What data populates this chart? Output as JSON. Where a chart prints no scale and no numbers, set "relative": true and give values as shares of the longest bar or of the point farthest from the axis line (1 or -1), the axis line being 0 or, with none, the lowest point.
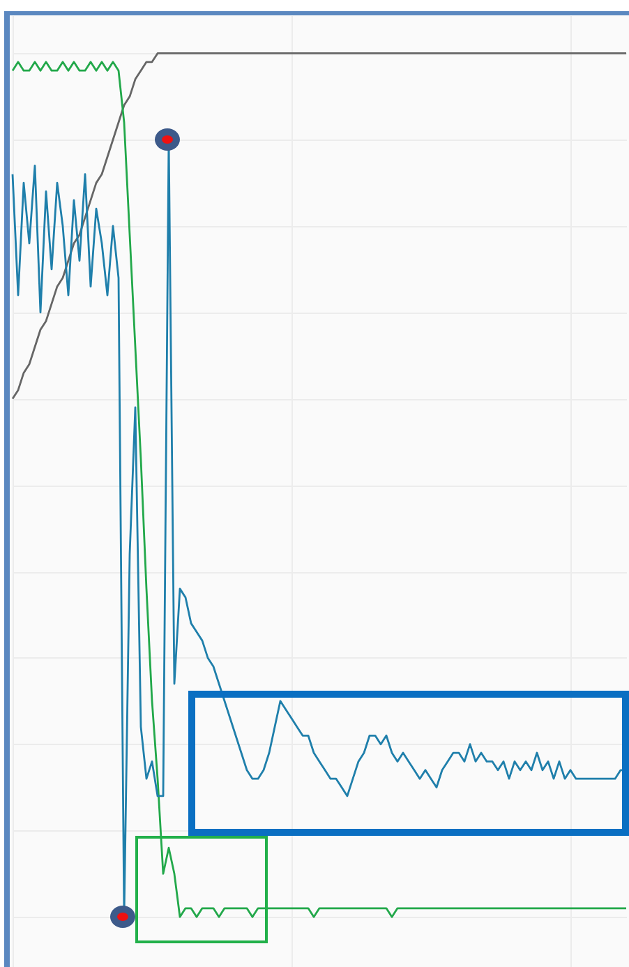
{
  "chart_data": {
    "type": "line",
    "relative": true,
    "grid": true,
    "categories": [
      null,
      null,
      null,
      null,
      null,
      null,
      null,
      null,
      null,
      null,
      null,
      null,
      null,
      null,
      null,
      null,
      null,
      null,
      null,
      null,
      null,
      null,
      null,
      null,
      null,
      null,
      null,
      null,
      null,
      null,
      null,
      null,
      null,
      null,
      null,
      null,
      null,
      null,
      null,
      null,
      null,
      null,
      null,
      null,
      null,
      null,
      null,
      null,
      null,
      null,
      null,
      null,
      null,
      null,
      null,
      null,
      null,
      null,
      null,
      null,
      null,
      null,
      null,
      null,
      null,
      null,
      null,
      null,
      null,
      null,
      null,
      null,
      null,
      null,
      null,
      null,
      null,
      null,
      null,
      null,
      null,
      null,
      null,
      null,
      null,
      null,
      null,
      null,
      null,
      null,
      null,
      null,
      null,
      null,
      null,
      null,
      null,
      null,
      null,
      null,
      null,
      null,
      null,
      null,
      null,
      null,
      null,
      null,
      null,
      null,
      null
    ],
    "series": [
      {
        "color": "#666666",
        "values": [
          0.6,
          0.61,
          0.63,
          0.64,
          0.66,
          0.68,
          0.69,
          0.71,
          0.73,
          0.74,
          0.76,
          0.78,
          0.79,
          0.81,
          0.83,
          0.85,
          0.86,
          0.88,
          0.9,
          0.92,
          0.94,
          0.95,
          0.97,
          0.98,
          0.99,
          0.99,
          1,
          1,
          1,
          1,
          1,
          1,
          1,
          1,
          1,
          1,
          1,
          1,
          1,
          1,
          1,
          1,
          1,
          1,
          1,
          1,
          1,
          1,
          1,
          1,
          1,
          1,
          1,
          1,
          1,
          1,
          1,
          1,
          1,
          1,
          1,
          1,
          1,
          1,
          1,
          1,
          1,
          1,
          1,
          1,
          1,
          1,
          1,
          1,
          1,
          1,
          1,
          1,
          1,
          1,
          1,
          1,
          1,
          1,
          1,
          1,
          1,
          1,
          1,
          1,
          1,
          1,
          1,
          1,
          1,
          1,
          1,
          1,
          1,
          1,
          1,
          1,
          1,
          1,
          1,
          1,
          1,
          1,
          1,
          1,
          1
        ]
      },
      {
        "color": "#22a84a",
        "values": [
          0.98,
          0.99,
          0.98,
          0.98,
          0.99,
          0.98,
          0.99,
          0.98,
          0.98,
          0.99,
          0.98,
          0.99,
          0.98,
          0.98,
          0.99,
          0.98,
          0.99,
          0.98,
          0.99,
          0.98,
          0.92,
          0.79,
          0.66,
          0.53,
          0.38,
          0.25,
          0.16,
          0.05,
          0.08,
          0.05,
          0.0,
          0.01,
          0.01,
          0.0,
          0.01,
          0.01,
          0.01,
          0.0,
          0.01,
          0.01,
          0.01,
          0.01,
          0.01,
          0.0,
          0.01,
          0.01,
          0.01,
          0.01,
          0.01,
          0.01,
          0.01,
          0.01,
          0.01,
          0.01,
          0.0,
          0.01,
          0.01,
          0.01,
          0.01,
          0.01,
          0.01,
          0.01,
          0.01,
          0.01,
          0.01,
          0.01,
          0.01,
          0.01,
          0.0,
          0.01,
          0.01,
          0.01,
          0.01,
          0.01,
          0.01,
          0.01,
          0.01,
          0.01,
          0.01,
          0.01,
          0.01,
          0.01,
          0.01,
          0.01,
          0.01,
          0.01,
          0.01,
          0.01,
          0.01,
          0.01,
          0.01,
          0.01,
          0.01,
          0.01,
          0.01,
          0.01,
          0.01,
          0.01,
          0.01,
          0.01,
          0.01,
          0.01,
          0.01,
          0.01,
          0.01,
          0.01,
          0.01,
          0.01,
          0.01,
          0.01,
          0.01
        ]
      },
      {
        "color": "#1f7fab",
        "values": [
          0.86,
          0.72,
          0.85,
          0.78,
          0.87,
          0.7,
          0.84,
          0.75,
          0.85,
          0.8,
          0.72,
          0.83,
          0.76,
          0.86,
          0.73,
          0.82,
          0.78,
          0.72,
          0.8,
          0.74,
          0.0,
          0.42,
          0.59,
          0.22,
          0.16,
          0.18,
          0.14,
          0.14,
          0.9,
          0.27,
          0.38,
          0.37,
          0.34,
          0.33,
          0.32,
          0.3,
          0.29,
          0.27,
          0.25,
          0.23,
          0.21,
          0.19,
          0.17,
          0.16,
          0.16,
          0.17,
          0.19,
          0.22,
          0.25,
          0.24,
          0.23,
          0.22,
          0.21,
          0.21,
          0.19,
          0.18,
          0.17,
          0.16,
          0.16,
          0.15,
          0.14,
          0.16,
          0.18,
          0.19,
          0.21,
          0.21,
          0.2,
          0.21,
          0.19,
          0.18,
          0.19,
          0.18,
          0.17,
          0.16,
          0.17,
          0.16,
          0.15,
          0.17,
          0.18,
          0.19,
          0.19,
          0.18,
          0.2,
          0.18,
          0.19,
          0.18,
          0.18,
          0.17,
          0.18,
          0.16,
          0.18,
          0.17,
          0.18,
          0.17,
          0.19,
          0.17,
          0.18,
          0.16,
          0.18,
          0.16,
          0.17,
          0.16,
          0.16,
          0.16,
          0.16,
          0.16,
          0.16,
          0.16,
          0.16,
          0.17,
          0.17
        ]
      }
    ]
  }
}
